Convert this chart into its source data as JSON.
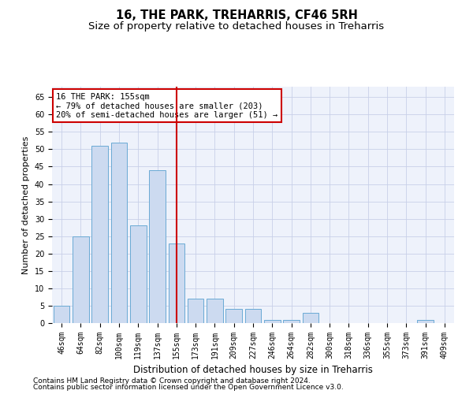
{
  "title1": "16, THE PARK, TREHARRIS, CF46 5RH",
  "title2": "Size of property relative to detached houses in Treharris",
  "xlabel": "Distribution of detached houses by size in Treharris",
  "ylabel": "Number of detached properties",
  "categories": [
    "46sqm",
    "64sqm",
    "82sqm",
    "100sqm",
    "119sqm",
    "137sqm",
    "155sqm",
    "173sqm",
    "191sqm",
    "209sqm",
    "227sqm",
    "246sqm",
    "264sqm",
    "282sqm",
    "300sqm",
    "318sqm",
    "336sqm",
    "355sqm",
    "373sqm",
    "391sqm",
    "409sqm"
  ],
  "values": [
    5,
    25,
    51,
    52,
    28,
    44,
    23,
    7,
    7,
    4,
    4,
    1,
    1,
    3,
    0,
    0,
    0,
    0,
    0,
    1,
    0
  ],
  "bar_color": "#ccdaf0",
  "bar_edge_color": "#6aaad4",
  "ref_line_index": 6,
  "ref_line_color": "#cc0000",
  "annotation_text": "16 THE PARK: 155sqm\n← 79% of detached houses are smaller (203)\n20% of semi-detached houses are larger (51) →",
  "annotation_box_edge": "#cc0000",
  "ylim": [
    0,
    68
  ],
  "yticks": [
    0,
    5,
    10,
    15,
    20,
    25,
    30,
    35,
    40,
    45,
    50,
    55,
    60,
    65
  ],
  "footer1": "Contains HM Land Registry data © Crown copyright and database right 2024.",
  "footer2": "Contains public sector information licensed under the Open Government Licence v3.0.",
  "background_color": "#eef2fb",
  "grid_color": "#c8d0e8",
  "title_fontsize": 10.5,
  "subtitle_fontsize": 9.5,
  "tick_fontsize": 7,
  "xlabel_fontsize": 8.5,
  "ylabel_fontsize": 8,
  "footer_fontsize": 6.5,
  "annotation_fontsize": 7.5
}
